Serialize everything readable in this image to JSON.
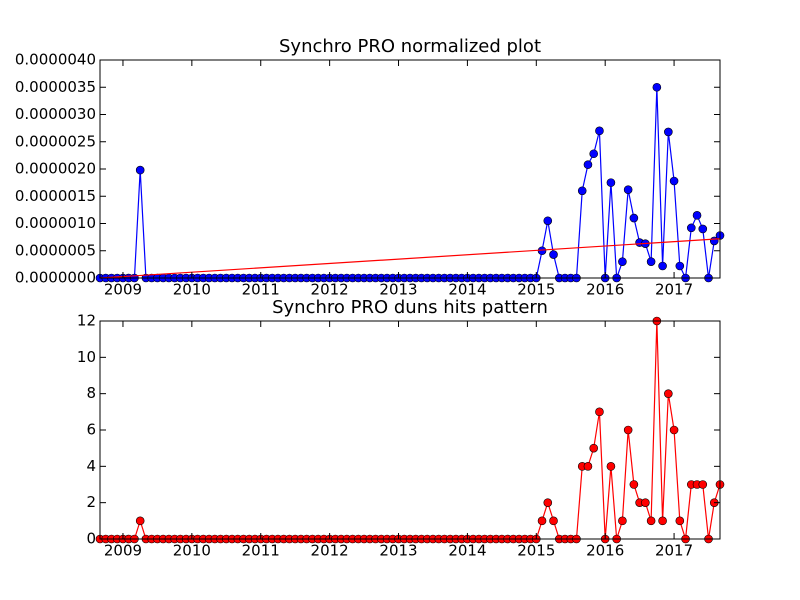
{
  "chart_data": [
    {
      "type": "line",
      "title": "Synchro PRO normalized plot",
      "x": [
        "2008-09",
        "2008-10",
        "2008-11",
        "2008-12",
        "2009-01",
        "2009-02",
        "2009-03",
        "2009-04",
        "2009-05",
        "2009-06",
        "2009-07",
        "2009-08",
        "2009-09",
        "2009-10",
        "2009-11",
        "2009-12",
        "2010-01",
        "2010-02",
        "2010-03",
        "2010-04",
        "2010-05",
        "2010-06",
        "2010-07",
        "2010-08",
        "2010-09",
        "2010-10",
        "2010-11",
        "2010-12",
        "2011-01",
        "2011-02",
        "2011-03",
        "2011-04",
        "2011-05",
        "2011-06",
        "2011-07",
        "2011-08",
        "2011-09",
        "2011-10",
        "2011-11",
        "2011-12",
        "2012-01",
        "2012-02",
        "2012-03",
        "2012-04",
        "2012-05",
        "2012-06",
        "2012-07",
        "2012-08",
        "2012-09",
        "2012-10",
        "2012-11",
        "2012-12",
        "2013-01",
        "2013-02",
        "2013-03",
        "2013-04",
        "2013-05",
        "2013-06",
        "2013-07",
        "2013-08",
        "2013-09",
        "2013-10",
        "2013-11",
        "2013-12",
        "2014-01",
        "2014-02",
        "2014-03",
        "2014-04",
        "2014-05",
        "2014-06",
        "2014-07",
        "2014-08",
        "2014-09",
        "2014-10",
        "2014-11",
        "2014-12",
        "2015-01",
        "2015-02",
        "2015-03",
        "2015-04",
        "2015-05",
        "2015-06",
        "2015-07",
        "2015-08",
        "2015-09",
        "2015-10",
        "2015-11",
        "2015-12",
        "2016-01",
        "2016-02",
        "2016-03",
        "2016-04",
        "2016-05",
        "2016-06",
        "2016-07",
        "2016-08",
        "2016-09",
        "2016-10",
        "2016-11",
        "2016-12",
        "2017-01",
        "2017-02",
        "2017-03",
        "2017-04",
        "2017-05",
        "2017-06",
        "2017-07",
        "2017-08",
        "2017-09"
      ],
      "series": [
        {
          "color": "#0000ff",
          "values": [
            0,
            0,
            0,
            0,
            0,
            0,
            0,
            1.98e-06,
            0,
            0,
            0,
            0,
            0,
            0,
            0,
            0,
            0,
            0,
            0,
            0,
            0,
            0,
            0,
            0,
            0,
            0,
            0,
            0,
            0,
            0,
            0,
            0,
            0,
            0,
            0,
            0,
            0,
            0,
            0,
            0,
            0,
            0,
            0,
            0,
            0,
            0,
            0,
            0,
            0,
            0,
            0,
            0,
            0,
            0,
            0,
            0,
            0,
            0,
            0,
            0,
            0,
            0,
            0,
            0,
            0,
            0,
            0,
            0,
            0,
            0,
            0,
            0,
            0,
            0,
            0,
            0,
            0,
            5e-07,
            1.05e-06,
            4.3e-07,
            0,
            0,
            0,
            0,
            1.6e-06,
            2.08e-06,
            2.28e-06,
            2.7e-06,
            0,
            1.75e-06,
            0,
            3e-07,
            1.62e-06,
            1.1e-06,
            6.5e-07,
            6.3e-07,
            3e-07,
            3.5e-06,
            2.2e-07,
            2.68e-06,
            1.78e-06,
            2.2e-07,
            0,
            9.2e-07,
            1.15e-06,
            9e-07,
            0,
            6.8e-07,
            7.8e-07
          ],
          "marker": true
        },
        {
          "color": "#ff0000",
          "x": [
            "2008-09",
            "2017-09"
          ],
          "values": [
            0,
            7.2e-07
          ],
          "marker": false
        }
      ],
      "xlim": [
        "2008-09",
        "2017-09"
      ],
      "xticks": [
        {
          "value": "2009-01",
          "label": "2009"
        },
        {
          "value": "2010-01",
          "label": "2010"
        },
        {
          "value": "2011-01",
          "label": "2011"
        },
        {
          "value": "2012-01",
          "label": "2012"
        },
        {
          "value": "2013-01",
          "label": "2013"
        },
        {
          "value": "2014-01",
          "label": "2014"
        },
        {
          "value": "2015-01",
          "label": "2015"
        },
        {
          "value": "2016-01",
          "label": "2016"
        },
        {
          "value": "2017-01",
          "label": "2017"
        }
      ],
      "ylim": [
        0,
        4e-06
      ],
      "yticks": [
        {
          "value": 0,
          "label": "0.0000000"
        },
        {
          "value": 5e-07,
          "label": "0.0000005"
        },
        {
          "value": 1e-06,
          "label": "0.0000010"
        },
        {
          "value": 1.5e-06,
          "label": "0.0000015"
        },
        {
          "value": 2e-06,
          "label": "0.0000020"
        },
        {
          "value": 2.5e-06,
          "label": "0.0000025"
        },
        {
          "value": 3e-06,
          "label": "0.0000030"
        },
        {
          "value": 3.5e-06,
          "label": "0.0000035"
        },
        {
          "value": 4e-06,
          "label": "0.0000040"
        }
      ]
    },
    {
      "type": "line",
      "title": "Synchro PRO duns hits pattern",
      "x": [
        "2008-09",
        "2008-10",
        "2008-11",
        "2008-12",
        "2009-01",
        "2009-02",
        "2009-03",
        "2009-04",
        "2009-05",
        "2009-06",
        "2009-07",
        "2009-08",
        "2009-09",
        "2009-10",
        "2009-11",
        "2009-12",
        "2010-01",
        "2010-02",
        "2010-03",
        "2010-04",
        "2010-05",
        "2010-06",
        "2010-07",
        "2010-08",
        "2010-09",
        "2010-10",
        "2010-11",
        "2010-12",
        "2011-01",
        "2011-02",
        "2011-03",
        "2011-04",
        "2011-05",
        "2011-06",
        "2011-07",
        "2011-08",
        "2011-09",
        "2011-10",
        "2011-11",
        "2011-12",
        "2012-01",
        "2012-02",
        "2012-03",
        "2012-04",
        "2012-05",
        "2012-06",
        "2012-07",
        "2012-08",
        "2012-09",
        "2012-10",
        "2012-11",
        "2012-12",
        "2013-01",
        "2013-02",
        "2013-03",
        "2013-04",
        "2013-05",
        "2013-06",
        "2013-07",
        "2013-08",
        "2013-09",
        "2013-10",
        "2013-11",
        "2013-12",
        "2014-01",
        "2014-02",
        "2014-03",
        "2014-04",
        "2014-05",
        "2014-06",
        "2014-07",
        "2014-08",
        "2014-09",
        "2014-10",
        "2014-11",
        "2014-12",
        "2015-01",
        "2015-02",
        "2015-03",
        "2015-04",
        "2015-05",
        "2015-06",
        "2015-07",
        "2015-08",
        "2015-09",
        "2015-10",
        "2015-11",
        "2015-12",
        "2016-01",
        "2016-02",
        "2016-03",
        "2016-04",
        "2016-05",
        "2016-06",
        "2016-07",
        "2016-08",
        "2016-09",
        "2016-10",
        "2016-11",
        "2016-12",
        "2017-01",
        "2017-02",
        "2017-03",
        "2017-04",
        "2017-05",
        "2017-06",
        "2017-07",
        "2017-08",
        "2017-09"
      ],
      "series": [
        {
          "color": "#ff0000",
          "values": [
            0,
            0,
            0,
            0,
            0,
            0,
            0,
            1,
            0,
            0,
            0,
            0,
            0,
            0,
            0,
            0,
            0,
            0,
            0,
            0,
            0,
            0,
            0,
            0,
            0,
            0,
            0,
            0,
            0,
            0,
            0,
            0,
            0,
            0,
            0,
            0,
            0,
            0,
            0,
            0,
            0,
            0,
            0,
            0,
            0,
            0,
            0,
            0,
            0,
            0,
            0,
            0,
            0,
            0,
            0,
            0,
            0,
            0,
            0,
            0,
            0,
            0,
            0,
            0,
            0,
            0,
            0,
            0,
            0,
            0,
            0,
            0,
            0,
            0,
            0,
            0,
            0,
            1,
            2,
            1,
            0,
            0,
            0,
            0,
            4,
            4,
            5,
            7,
            0,
            4,
            0,
            1,
            6,
            3,
            2,
            2,
            1,
            12,
            1,
            8,
            6,
            1,
            0,
            3,
            3,
            3,
            0,
            2,
            3
          ],
          "marker": true
        }
      ],
      "xlim": [
        "2008-09",
        "2017-09"
      ],
      "xticks": [
        {
          "value": "2009-01",
          "label": "2009"
        },
        {
          "value": "2010-01",
          "label": "2010"
        },
        {
          "value": "2011-01",
          "label": "2011"
        },
        {
          "value": "2012-01",
          "label": "2012"
        },
        {
          "value": "2013-01",
          "label": "2013"
        },
        {
          "value": "2014-01",
          "label": "2014"
        },
        {
          "value": "2015-01",
          "label": "2015"
        },
        {
          "value": "2016-01",
          "label": "2016"
        },
        {
          "value": "2017-01",
          "label": "2017"
        }
      ],
      "ylim": [
        0,
        12
      ],
      "yticks": [
        0,
        2,
        4,
        6,
        8,
        10,
        12
      ]
    }
  ]
}
